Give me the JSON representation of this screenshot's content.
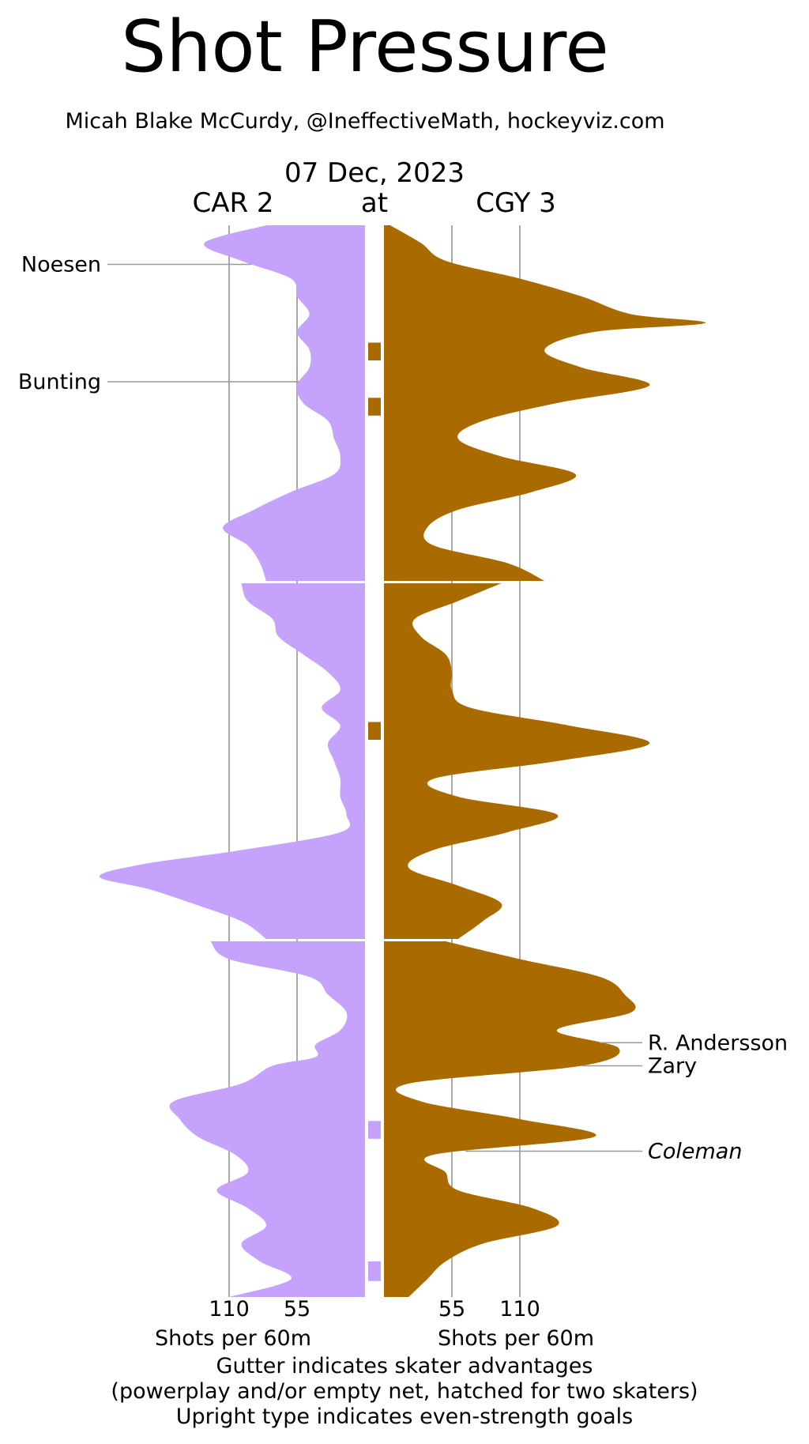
{
  "chart_data": {
    "type": "area",
    "title": "Shot Pressure",
    "subtitle": "Micah Blake McCurdy, @IneffectiveMath, hockeyviz.com",
    "date": "07 Dec, 2023",
    "at_label": "at",
    "away_label": "CAR 2",
    "home_label": "CGY 3",
    "x_ticks": [
      110,
      55
    ],
    "x_label": "Shots per 60m",
    "x_max": 220,
    "grid": true,
    "footnotes": [
      "Gutter indicates skater advantages",
      "(powerplay and/or empty net, hatched for two skaters)",
      "Upright type indicates even-strength goals"
    ],
    "period_minutes": 20,
    "colors": {
      "away": "#c5a3fc",
      "home": "#a96b00",
      "grid": "#aaaaaa"
    },
    "series": [
      {
        "name": "CAR 2",
        "side": "away",
        "periods": [
          {
            "t": [
              0,
              1,
              2,
              3,
              4,
              5,
              6,
              7,
              8,
              9,
              10,
              11,
              12,
              13,
              14,
              15,
              16,
              17,
              18,
              19,
              20
            ],
            "v": [
              80,
              130,
              100,
              60,
              55,
              45,
              55,
              45,
              45,
              55,
              50,
              30,
              25,
              20,
              25,
              60,
              90,
              115,
              95,
              85,
              80
            ]
          },
          {
            "t": [
              0,
              1,
              2,
              3,
              4,
              5,
              6,
              7,
              8,
              9,
              10,
              11,
              12,
              13,
              14,
              15,
              15.8,
              16.5,
              17.2,
              18,
              19,
              20
            ],
            "v": [
              100,
              95,
              75,
              70,
              50,
              30,
              20,
              35,
              20,
              30,
              25,
              20,
              20,
              15,
              20,
              100,
              180,
              215,
              175,
              140,
              100,
              80
            ]
          },
          {
            "t": [
              0,
              1,
              2,
              3,
              4,
              5,
              5.8,
              6.5,
              7,
              8,
              9,
              10,
              11,
              12,
              13,
              14,
              15,
              16,
              17,
              18,
              19,
              20
            ],
            "v": [
              125,
              110,
              45,
              30,
              15,
              20,
              40,
              40,
              75,
              100,
              155,
              150,
              135,
              105,
              95,
              120,
              95,
              80,
              100,
              85,
              60,
              110
            ]
          }
        ]
      },
      {
        "name": "CGY 3",
        "side": "home",
        "periods": [
          {
            "t": [
              0,
              1,
              2,
              3,
              4,
              5,
              5.5,
              6,
              7,
              8,
              9,
              10,
              11,
              12,
              13,
              14,
              15,
              16,
              17,
              18,
              19,
              20
            ],
            "v": [
              5,
              30,
              50,
              110,
              160,
              200,
              260,
              170,
              130,
              160,
              215,
              140,
              80,
              60,
              95,
              155,
              120,
              60,
              35,
              40,
              100,
              130
            ]
          },
          {
            "t": [
              0,
              1,
              2,
              3,
              4,
              5,
              6,
              7,
              8,
              9,
              10,
              11,
              12,
              13,
              14,
              15,
              16,
              17,
              18,
              19,
              20
            ],
            "v": [
              95,
              60,
              25,
              30,
              50,
              55,
              55,
              70,
              150,
              215,
              140,
              40,
              60,
              140,
              100,
              40,
              20,
              60,
              95,
              80,
              60
            ]
          },
          {
            "t": [
              0,
              1,
              2,
              3,
              4,
              5,
              6,
              7,
              8,
              9,
              10,
              11,
              12,
              13,
              14,
              15,
              16,
              17,
              18,
              19,
              20
            ],
            "v": [
              50,
              110,
              175,
              195,
              200,
              140,
              190,
              160,
              20,
              30,
              110,
              170,
              40,
              50,
              60,
              120,
              140,
              80,
              50,
              35,
              20
            ]
          }
        ]
      }
    ],
    "advantages": [
      {
        "team": "CGY 3",
        "period": 1,
        "start": 6.6,
        "end": 7.6
      },
      {
        "team": "CGY 3",
        "period": 1,
        "start": 9.7,
        "end": 10.7
      },
      {
        "team": "CGY 3",
        "period": 2,
        "start": 7.8,
        "end": 8.8
      },
      {
        "team": "CAR 2",
        "period": 3,
        "start": 10.1,
        "end": 11.1
      },
      {
        "team": "CAR 2",
        "period": 3,
        "start": 18.0,
        "end": 19.1
      }
    ],
    "goals": [
      {
        "name": "Noesen",
        "team": "CAR 2",
        "period": 1,
        "minute": 2.2,
        "even_strength": true
      },
      {
        "name": "Bunting",
        "team": "CAR 2",
        "period": 1,
        "minute": 8.8,
        "even_strength": true
      },
      {
        "name": "R. Andersson",
        "team": "CGY 3",
        "period": 3,
        "minute": 5.7,
        "even_strength": true
      },
      {
        "name": "Zary",
        "team": "CGY 3",
        "period": 3,
        "minute": 7.0,
        "even_strength": true
      },
      {
        "name": "Coleman",
        "team": "CGY 3",
        "period": 3,
        "minute": 11.8,
        "even_strength": false
      }
    ]
  }
}
